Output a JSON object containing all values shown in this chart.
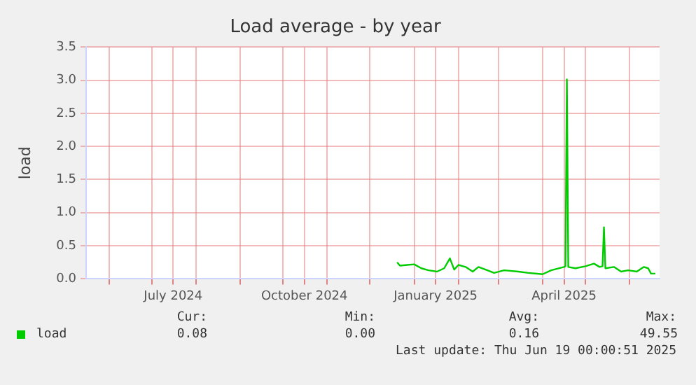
{
  "chart_data": {
    "type": "line",
    "title": "Load average - by year",
    "ylabel": "load",
    "x": [
      "2024-12-20",
      "2024-12-22",
      "2024-12-27",
      "2025-01-01",
      "2025-01-06",
      "2025-01-11",
      "2025-01-17",
      "2025-01-22",
      "2025-01-26",
      "2025-01-29",
      "2025-02-01",
      "2025-02-06",
      "2025-02-11",
      "2025-02-15",
      "2025-02-20",
      "2025-02-26",
      "2025-03-05",
      "2025-03-15",
      "2025-03-22",
      "2025-04-01",
      "2025-04-07",
      "2025-04-16",
      "2025-04-17",
      "2025-04-18",
      "2025-04-19",
      "2025-04-24",
      "2025-05-01",
      "2025-05-07",
      "2025-05-11",
      "2025-05-13",
      "2025-05-14",
      "2025-05-15",
      "2025-05-21",
      "2025-05-26",
      "2025-05-31",
      "2025-06-06",
      "2025-06-11",
      "2025-06-14",
      "2025-06-16",
      "2025-06-19"
    ],
    "series": [
      {
        "name": "load",
        "color": "#00cc00",
        "values": [
          0.25,
          0.2,
          0.21,
          0.22,
          0.16,
          0.13,
          0.11,
          0.16,
          0.31,
          0.14,
          0.21,
          0.18,
          0.11,
          0.18,
          0.14,
          0.09,
          0.13,
          0.11,
          0.09,
          0.07,
          0.13,
          0.18,
          0.19,
          3.01,
          0.18,
          0.16,
          0.19,
          0.23,
          0.18,
          0.19,
          0.78,
          0.16,
          0.18,
          0.11,
          0.13,
          0.11,
          0.18,
          0.16,
          0.08,
          0.08
        ]
      }
    ],
    "xlim": [
      "2024-05-16",
      "2025-06-22"
    ],
    "xticks": [
      {
        "value": "2024-06-01",
        "label": null
      },
      {
        "value": "2024-07-01",
        "label": null
      },
      {
        "value": "2024-07-16",
        "label": "July 2024"
      },
      {
        "value": "2024-08-01",
        "label": null
      },
      {
        "value": "2024-09-01",
        "label": null
      },
      {
        "value": "2024-10-01",
        "label": null
      },
      {
        "value": "2024-10-16",
        "label": "October 2024"
      },
      {
        "value": "2024-11-01",
        "label": null
      },
      {
        "value": "2024-12-01",
        "label": null
      },
      {
        "value": "2025-01-01",
        "label": null
      },
      {
        "value": "2025-01-16",
        "label": "January 2025"
      },
      {
        "value": "2025-02-01",
        "label": null
      },
      {
        "value": "2025-03-01",
        "label": null
      },
      {
        "value": "2025-04-01",
        "label": null
      },
      {
        "value": "2025-04-16",
        "label": "April 2025"
      },
      {
        "value": "2025-05-01",
        "label": null
      },
      {
        "value": "2025-06-01",
        "label": null
      }
    ],
    "ylim": [
      0,
      3.5
    ],
    "yticks": [
      {
        "value": 0,
        "label": "0.0"
      },
      {
        "value": 0.5,
        "label": "0.5"
      },
      {
        "value": 1,
        "label": "1.0"
      },
      {
        "value": 1.5,
        "label": "1.5"
      },
      {
        "value": 2,
        "label": "2.0"
      },
      {
        "value": 2.5,
        "label": "2.5"
      },
      {
        "value": 3,
        "label": "3.0"
      },
      {
        "value": 3.5,
        "label": "3.5"
      }
    ],
    "grid": true,
    "legend": "bottom left",
    "marker": "none",
    "line_style": "solid",
    "annotations": [
      "Cur:",
      "Min:",
      "Avg:",
      "Max:",
      "0.08",
      "0.00",
      "0.16",
      "49.55",
      "Last update: Thu Jun 19 00:00:51 2025"
    ]
  }
}
